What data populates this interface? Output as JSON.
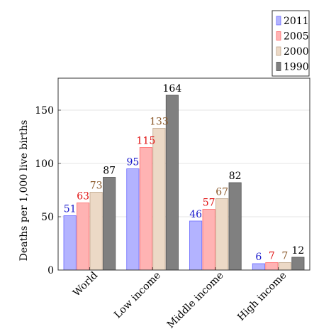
{
  "chart_data": {
    "type": "bar",
    "title": "",
    "xlabel": "",
    "ylabel": "Deaths per 1,000 live births",
    "categories": [
      "World",
      "Low income",
      "Middle income",
      "High income"
    ],
    "series": [
      {
        "name": "2011",
        "values": [
          51,
          95,
          46,
          6
        ],
        "fill": "#b3b3ff",
        "stroke": "#6a6aff",
        "label_color": "#1a1acc"
      },
      {
        "name": "2005",
        "values": [
          63,
          115,
          57,
          7
        ],
        "fill": "#ffb3b3",
        "stroke": "#ff6a6a",
        "label_color": "#e01010"
      },
      {
        "name": "2000",
        "values": [
          73,
          133,
          67,
          7
        ],
        "fill": "#ecd9c6",
        "stroke": "#bfa58a",
        "label_color": "#8b5a2b"
      },
      {
        "name": "1990",
        "values": [
          87,
          164,
          82,
          12
        ],
        "fill": "#808080",
        "stroke": "#555555",
        "label_color": "#000000"
      }
    ],
    "yticks": [
      0,
      50,
      100,
      150
    ],
    "ylim": [
      0,
      180
    ],
    "grid": "horizontal",
    "legend_position": "top-right"
  }
}
